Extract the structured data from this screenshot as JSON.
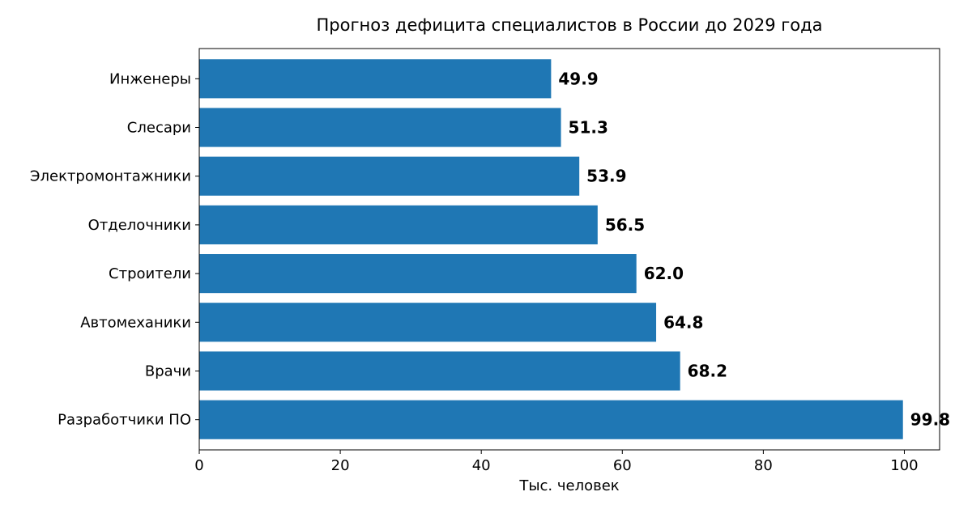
{
  "chart_data": {
    "type": "bar",
    "orientation": "horizontal",
    "title": "Прогноз дефицита специалистов в России до 2029 года",
    "xlabel": "Тыс. человек",
    "ylabel": "",
    "categories": [
      "Разработчики ПО",
      "Врачи",
      "Автомеханики",
      "Строители",
      "Отделочники",
      "Электромонтажники",
      "Слесари",
      "Инженеры"
    ],
    "values": [
      99.8,
      68.2,
      64.8,
      62.0,
      56.5,
      53.9,
      51.3,
      49.9
    ],
    "value_labels": [
      "99.8",
      "68.2",
      "64.8",
      "62.0",
      "56.5",
      "53.9",
      "51.3",
      "49.9"
    ],
    "xlim": [
      0,
      105
    ],
    "xticks": [
      0,
      20,
      40,
      60,
      80,
      100
    ],
    "grid": false,
    "legend": "none",
    "bar_color": "#1f77b4"
  }
}
